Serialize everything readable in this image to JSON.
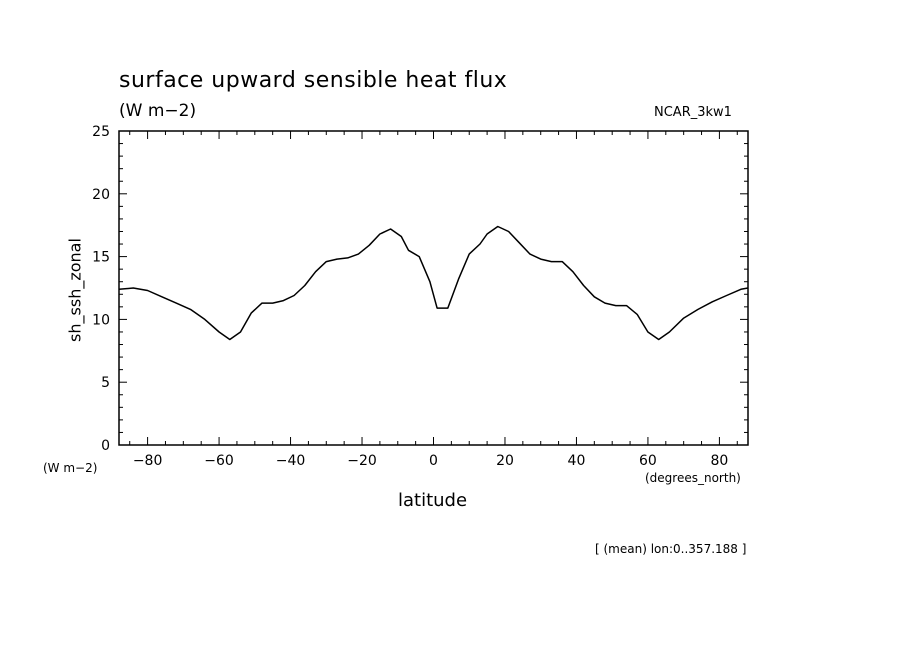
{
  "chart_data": {
    "type": "line",
    "title": "surface upward sensible heat flux",
    "units": "(W m−2)",
    "model_label": "NCAR_3kw1",
    "ylabel": "sh_ssh_zonal",
    "yunit_label": "(W m−2)",
    "xlabel": "latitude",
    "xunit_label": "(degrees_north)",
    "footnote": "[ (mean) lon:0..357.188 ]",
    "xlim": [
      -88,
      88
    ],
    "ylim": [
      0,
      25
    ],
    "xticks": [
      -80,
      -60,
      -40,
      -20,
      0,
      20,
      40,
      60,
      80
    ],
    "xtick_labels": [
      "−80",
      "−60",
      "−40",
      "−20",
      "0",
      "20",
      "40",
      "60",
      "80"
    ],
    "yticks": [
      0,
      5,
      10,
      15,
      20,
      25
    ],
    "ytick_labels": [
      "0",
      "5",
      "10",
      "15",
      "20",
      "25"
    ],
    "grid": false,
    "series": [
      {
        "x": [
          -88,
          -84,
          -80,
          -76,
          -72,
          -68,
          -64,
          -60,
          -57,
          -54,
          -51,
          -48,
          -45,
          -42,
          -39,
          -36,
          -33,
          -30,
          -27,
          -24,
          -21,
          -18,
          -15,
          -12,
          -9,
          -7,
          -4,
          -1,
          1,
          4,
          7,
          10,
          13,
          15,
          18,
          21,
          24,
          27,
          30,
          33,
          36,
          39,
          42,
          45,
          48,
          51,
          54,
          57,
          60,
          63,
          66,
          70,
          74,
          78,
          82,
          86,
          88
        ],
        "y": [
          12.4,
          12.5,
          12.3,
          11.8,
          11.3,
          10.8,
          10.0,
          9.0,
          8.4,
          9.0,
          10.5,
          11.3,
          11.3,
          11.5,
          11.9,
          12.7,
          13.8,
          14.6,
          14.8,
          14.9,
          15.2,
          15.9,
          16.8,
          17.2,
          16.6,
          15.5,
          15.0,
          13.0,
          10.9,
          10.9,
          13.2,
          15.2,
          16.0,
          16.8,
          17.4,
          17.0,
          16.1,
          15.2,
          14.8,
          14.6,
          14.6,
          13.8,
          12.7,
          11.8,
          11.3,
          11.1,
          11.1,
          10.4,
          9.0,
          8.4,
          9.0,
          10.1,
          10.8,
          11.4,
          11.9,
          12.4,
          12.5
        ]
      }
    ]
  }
}
